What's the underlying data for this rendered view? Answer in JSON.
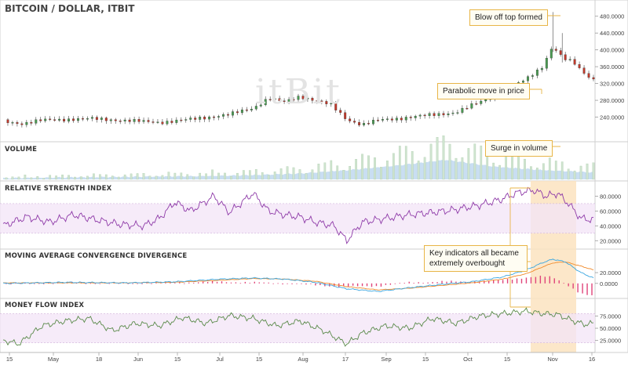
{
  "title": "BITCOIN / DOLLAR, ITBIT",
  "watermark": "itBit",
  "panel_titles": {
    "volume": "VOLUME",
    "rsi": "RELATIVE STRENGTH INDEX",
    "macd": "MOVING AVERAGE CONVERGENCE DIVERGENCE",
    "mfi": "MONEY FLOW INDEX"
  },
  "annotations": {
    "blow_off": "Blow off top formed",
    "parabolic": "Parabolic move in price",
    "surge": "Surge in volume",
    "key": "Key indicators all became extremely overbought"
  },
  "x_axis": [
    "15",
    "May",
    "18",
    "Jun",
    "15",
    "Jul",
    "15",
    "Aug",
    "17",
    "Sep",
    "15",
    "Oct",
    "15",
    "Nov",
    "16"
  ],
  "colors": {
    "up": "#4a9a52",
    "down": "#c0392b",
    "rsi_line": "#8e3aa8",
    "mfi_line": "#5a8a4a",
    "macd_line": "#3aa6e0",
    "signal_line": "#f08a2a",
    "band_fill": "#f3e4f7",
    "highlight": "#fbe3c0"
  },
  "chart_data": [
    {
      "type": "candlestick",
      "panel": "price",
      "title": "BITCOIN / DOLLAR, ITBIT",
      "y_ticks": [
        "480.0000",
        "440.0000",
        "400.0000",
        "360.0000",
        "320.0000",
        "280.0000",
        "240.0000"
      ],
      "ylim": [
        200,
        500
      ],
      "close_keypoints": [
        [
          0,
          230
        ],
        [
          12,
          225
        ],
        [
          25,
          232
        ],
        [
          40,
          235
        ],
        [
          55,
          236
        ],
        [
          70,
          234
        ],
        [
          85,
          230
        ],
        [
          100,
          228
        ],
        [
          115,
          232
        ],
        [
          130,
          240
        ],
        [
          145,
          246
        ],
        [
          160,
          262
        ],
        [
          170,
          285
        ],
        [
          180,
          275
        ],
        [
          190,
          290
        ],
        [
          200,
          280
        ],
        [
          210,
          268
        ],
        [
          220,
          235
        ],
        [
          230,
          222
        ],
        [
          240,
          232
        ],
        [
          250,
          236
        ],
        [
          260,
          240
        ],
        [
          275,
          245
        ],
        [
          290,
          252
        ],
        [
          305,
          275
        ],
        [
          320,
          300
        ],
        [
          335,
          330
        ],
        [
          345,
          360
        ],
        [
          352,
          410
        ],
        [
          358,
          380
        ],
        [
          365,
          370
        ],
        [
          372,
          345
        ],
        [
          378,
          330
        ]
      ],
      "volume_values": [
        5,
        8,
        10,
        12,
        14,
        18,
        25,
        40,
        60,
        85,
        55,
        40,
        30
      ]
    },
    {
      "type": "line",
      "panel": "rsi",
      "title": "RELATIVE STRENGTH INDEX",
      "y_ticks": [
        "80.0000",
        "60.0000",
        "40.0000",
        "20.0000"
      ],
      "ylim": [
        15,
        90
      ],
      "band": [
        30,
        70
      ],
      "keypoints": [
        [
          0,
          40
        ],
        [
          15,
          52
        ],
        [
          30,
          45
        ],
        [
          45,
          55
        ],
        [
          60,
          48
        ],
        [
          75,
          42
        ],
        [
          90,
          40
        ],
        [
          100,
          50
        ],
        [
          110,
          72
        ],
        [
          120,
          60
        ],
        [
          135,
          80
        ],
        [
          145,
          58
        ],
        [
          160,
          84
        ],
        [
          170,
          60
        ],
        [
          180,
          55
        ],
        [
          190,
          52
        ],
        [
          200,
          45
        ],
        [
          212,
          40
        ],
        [
          220,
          20
        ],
        [
          230,
          45
        ],
        [
          245,
          50
        ],
        [
          260,
          55
        ],
        [
          275,
          58
        ],
        [
          290,
          62
        ],
        [
          305,
          68
        ],
        [
          318,
          75
        ],
        [
          330,
          85
        ],
        [
          340,
          88
        ],
        [
          348,
          80
        ],
        [
          355,
          84
        ],
        [
          362,
          70
        ],
        [
          370,
          50
        ],
        [
          378,
          48
        ]
      ]
    },
    {
      "type": "line",
      "panel": "macd",
      "title": "MOVING AVERAGE CONVERGENCE DIVERGENCE",
      "y_ticks": [
        "20.0000",
        "0.0000"
      ],
      "ylim": [
        -25,
        55
      ],
      "macd_keypoints": [
        [
          0,
          0
        ],
        [
          40,
          2
        ],
        [
          80,
          1
        ],
        [
          110,
          3
        ],
        [
          140,
          8
        ],
        [
          160,
          10
        ],
        [
          180,
          8
        ],
        [
          200,
          2
        ],
        [
          220,
          -10
        ],
        [
          240,
          -15
        ],
        [
          260,
          -8
        ],
        [
          280,
          -2
        ],
        [
          300,
          3
        ],
        [
          320,
          12
        ],
        [
          335,
          25
        ],
        [
          345,
          38
        ],
        [
          352,
          45
        ],
        [
          360,
          40
        ],
        [
          370,
          20
        ],
        [
          378,
          10
        ]
      ],
      "signal_keypoints": [
        [
          0,
          1
        ],
        [
          40,
          1
        ],
        [
          80,
          1
        ],
        [
          110,
          2
        ],
        [
          140,
          6
        ],
        [
          160,
          9
        ],
        [
          180,
          8
        ],
        [
          200,
          4
        ],
        [
          220,
          -6
        ],
        [
          240,
          -12
        ],
        [
          260,
          -9
        ],
        [
          280,
          -4
        ],
        [
          300,
          1
        ],
        [
          320,
          8
        ],
        [
          335,
          18
        ],
        [
          345,
          30
        ],
        [
          352,
          38
        ],
        [
          360,
          40
        ],
        [
          370,
          32
        ],
        [
          378,
          25
        ]
      ]
    },
    {
      "type": "line",
      "panel": "mfi",
      "title": "MONEY FLOW INDEX",
      "y_ticks": [
        "75.0000",
        "50.0000",
        "25.0000"
      ],
      "ylim": [
        10,
        95
      ],
      "band": [
        20,
        80
      ],
      "keypoints": [
        [
          0,
          25
        ],
        [
          10,
          18
        ],
        [
          25,
          55
        ],
        [
          40,
          65
        ],
        [
          55,
          70
        ],
        [
          70,
          45
        ],
        [
          85,
          60
        ],
        [
          100,
          55
        ],
        [
          115,
          72
        ],
        [
          130,
          60
        ],
        [
          145,
          76
        ],
        [
          160,
          70
        ],
        [
          175,
          55
        ],
        [
          190,
          65
        ],
        [
          205,
          45
        ],
        [
          220,
          18
        ],
        [
          230,
          40
        ],
        [
          245,
          55
        ],
        [
          260,
          50
        ],
        [
          275,
          70
        ],
        [
          290,
          60
        ],
        [
          305,
          75
        ],
        [
          320,
          80
        ],
        [
          335,
          85
        ],
        [
          345,
          80
        ],
        [
          355,
          78
        ],
        [
          365,
          65
        ],
        [
          372,
          58
        ],
        [
          378,
          60
        ]
      ]
    }
  ]
}
